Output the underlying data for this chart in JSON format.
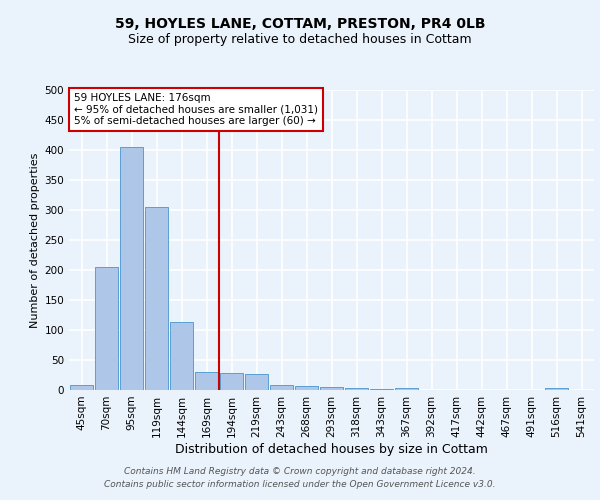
{
  "title_line1": "59, HOYLES LANE, COTTAM, PRESTON, PR4 0LB",
  "title_line2": "Size of property relative to detached houses in Cottam",
  "xlabel": "Distribution of detached houses by size in Cottam",
  "ylabel": "Number of detached properties",
  "categories": [
    "45sqm",
    "70sqm",
    "95sqm",
    "119sqm",
    "144sqm",
    "169sqm",
    "194sqm",
    "219sqm",
    "243sqm",
    "268sqm",
    "293sqm",
    "318sqm",
    "343sqm",
    "367sqm",
    "392sqm",
    "417sqm",
    "442sqm",
    "467sqm",
    "491sqm",
    "516sqm",
    "541sqm"
  ],
  "values": [
    8,
    205,
    405,
    305,
    113,
    30,
    29,
    26,
    9,
    7,
    5,
    3,
    2,
    3,
    0,
    0,
    0,
    0,
    0,
    4,
    0
  ],
  "bar_color": "#aec6e8",
  "bar_edge_color": "#5a9fd4",
  "vline_x": 5.5,
  "vline_color": "#cc0000",
  "ylim": [
    0,
    500
  ],
  "yticks": [
    0,
    50,
    100,
    150,
    200,
    250,
    300,
    350,
    400,
    450,
    500
  ],
  "bg_color": "#eaf2fb",
  "plot_bg_color": "#eaf2fb",
  "grid_color": "#ffffff",
  "legend_text_line1": "59 HOYLES LANE: 176sqm",
  "legend_text_line2": "← 95% of detached houses are smaller (1,031)",
  "legend_text_line3": "5% of semi-detached houses are larger (60) →",
  "legend_box_color": "#ffffff",
  "legend_box_edge_color": "#cc0000",
  "footer_line1": "Contains HM Land Registry data © Crown copyright and database right 2024.",
  "footer_line2": "Contains public sector information licensed under the Open Government Licence v3.0.",
  "title_fontsize": 10,
  "subtitle_fontsize": 9,
  "xlabel_fontsize": 9,
  "ylabel_fontsize": 8,
  "tick_fontsize": 7.5,
  "footer_fontsize": 6.5,
  "legend_fontsize": 7.5
}
